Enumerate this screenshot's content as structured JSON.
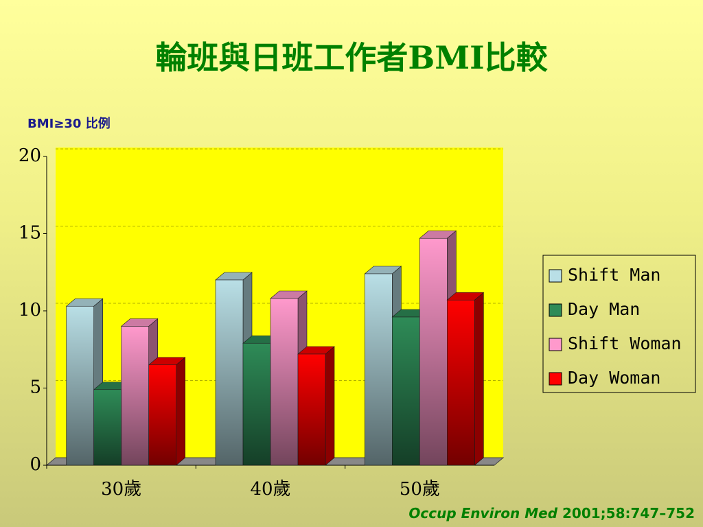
{
  "chart_data": {
    "type": "bar3d",
    "title": "輪班與日班工作者BMI比較",
    "y_label": "BMI≥30 比例",
    "categories": [
      "30歲",
      "40歲",
      "50歲"
    ],
    "series": [
      {
        "name": "Shift Man",
        "color": "#b9dfe6",
        "values": [
          10.3,
          12.0,
          12.4
        ]
      },
      {
        "name": "Day Man",
        "color": "#2e8b57",
        "values": [
          4.9,
          7.9,
          9.6
        ]
      },
      {
        "name": "Shift Woman",
        "color": "#ff99cc",
        "values": [
          9.0,
          10.8,
          14.7
        ]
      },
      {
        "name": "Day Woman",
        "color": "#ff0000",
        "values": [
          6.5,
          7.2,
          10.7
        ]
      }
    ],
    "ylim": [
      0,
      20
    ],
    "yticks": [
      0,
      5,
      10,
      15,
      20
    ],
    "grid": true,
    "legend": "right",
    "source": {
      "journal": "Occup Environ Med",
      "citation": "2001;58:747–752"
    }
  }
}
